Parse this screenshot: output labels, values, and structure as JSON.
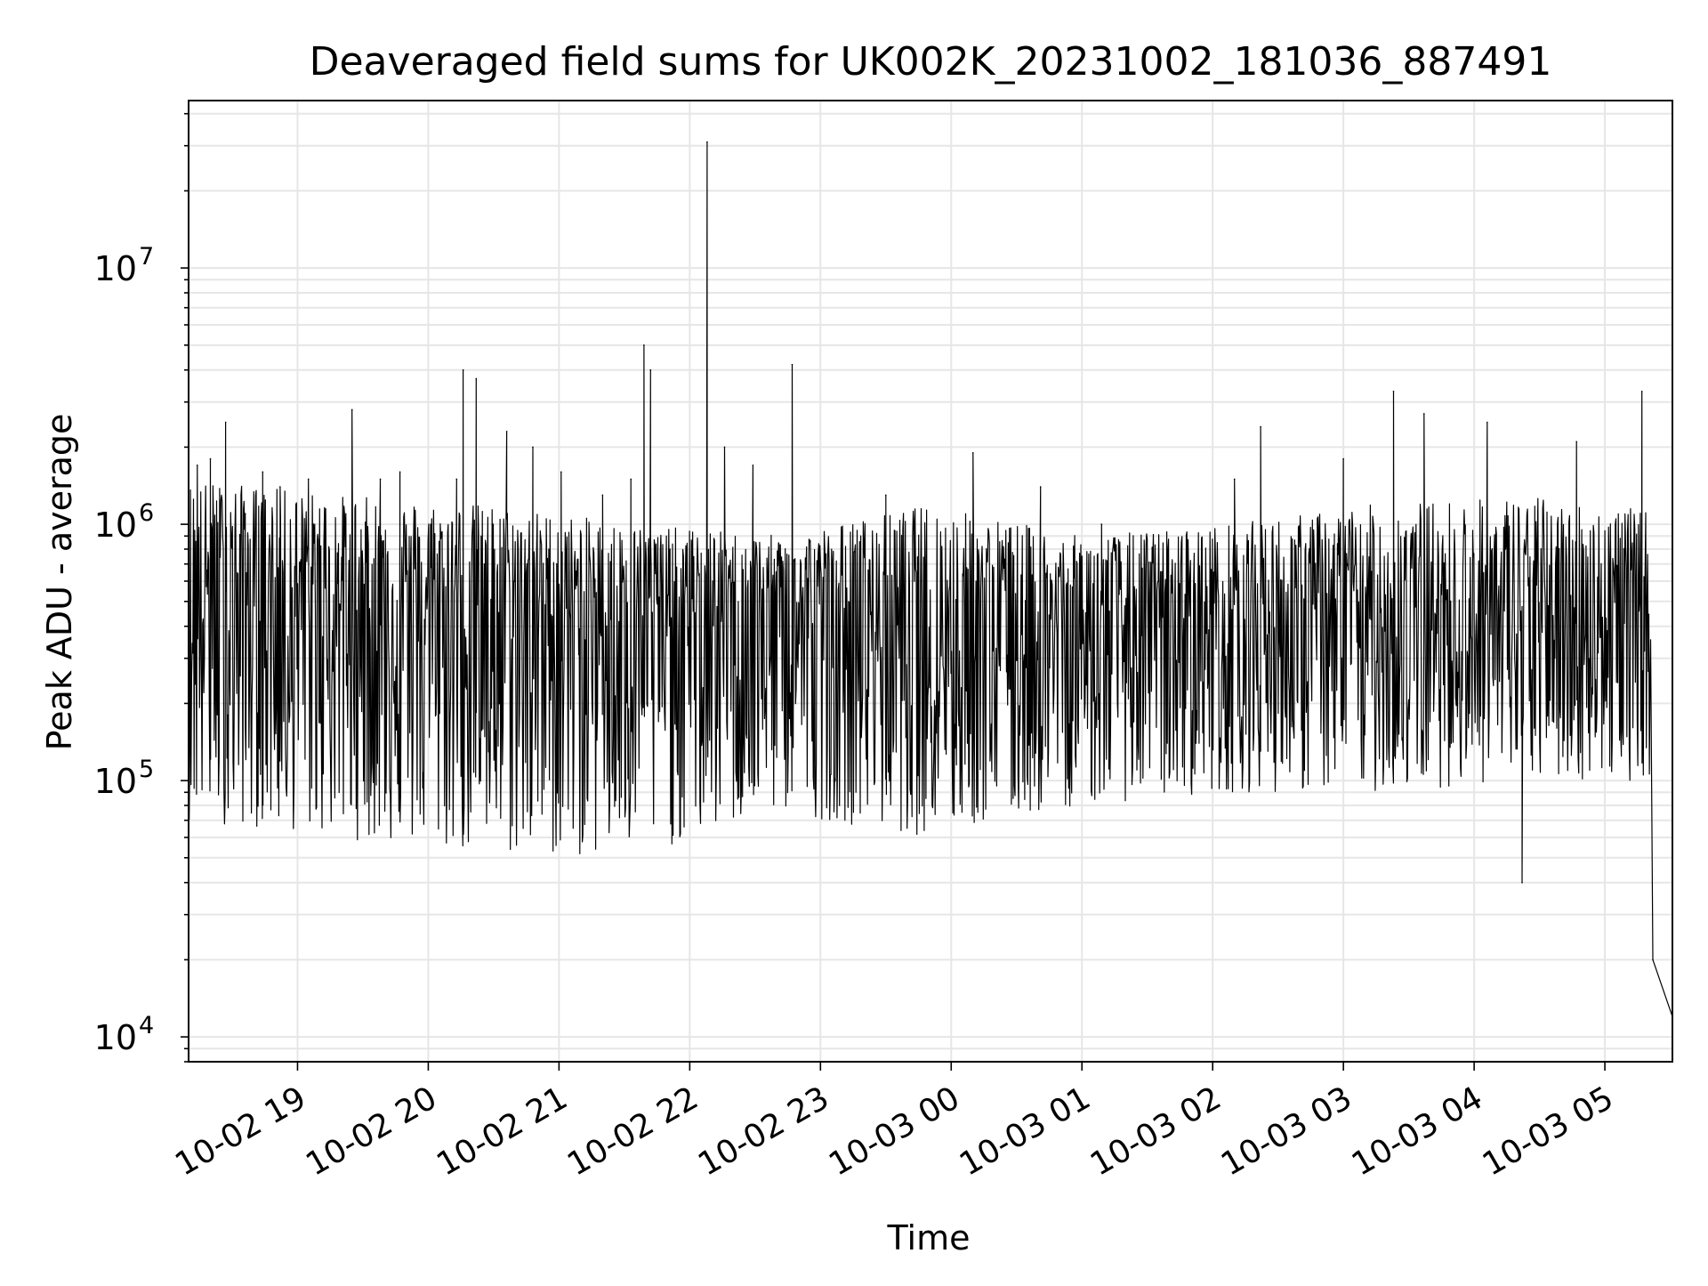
{
  "chart_data": {
    "type": "line",
    "title": "Deaveraged field sums for UK002K_20231002_181036_887491",
    "xlabel": "Time",
    "ylabel": "Peak ADU - average",
    "yscale": "log",
    "ylim": [
      8000,
      45000000
    ],
    "xlim": [
      "2023-10-02 18:10",
      "2023-10-03 05:31"
    ],
    "grid": true,
    "line_color": "#000000",
    "grid_color": "#e6e6e6",
    "x_tick_labels": [
      "10-02 19",
      "10-02 20",
      "10-02 21",
      "10-02 22",
      "10-02 23",
      "10-03 00",
      "10-03 01",
      "10-03 02",
      "10-03 03",
      "10-03 04",
      "10-03 05"
    ],
    "x_ticks": [
      "2023-10-02 19:00",
      "2023-10-02 20:00",
      "2023-10-02 21:00",
      "2023-10-02 22:00",
      "2023-10-02 23:00",
      "2023-10-03 00:00",
      "2023-10-03 01:00",
      "2023-10-03 02:00",
      "2023-10-03 03:00",
      "2023-10-03 04:00",
      "2023-10-03 05:00"
    ],
    "y_tick_values": [
      10000,
      100000,
      1000000,
      10000000
    ],
    "y_tick_labels": [
      {
        "base": "10",
        "exp": "4"
      },
      {
        "base": "10",
        "exp": "5"
      },
      {
        "base": "10",
        "exp": "6"
      },
      {
        "base": "10",
        "exp": "7"
      }
    ],
    "series": [
      {
        "values_note_free": true,
        "x": [
          "2023-10-02 18:10",
          "2023-10-02 18:14",
          "2023-10-02 18:20",
          "2023-10-02 18:27",
          "2023-10-02 18:36",
          "2023-10-02 18:44",
          "2023-10-02 18:52",
          "2023-10-02 19:05",
          "2023-10-02 19:25",
          "2023-10-02 19:38",
          "2023-10-02 19:47",
          "2023-10-02 20:13",
          "2023-10-02 20:16",
          "2023-10-02 20:22",
          "2023-10-02 20:36",
          "2023-10-02 20:48",
          "2023-10-02 21:01",
          "2023-10-02 21:20",
          "2023-10-02 21:33",
          "2023-10-02 21:39",
          "2023-10-02 21:42",
          "2023-10-02 22:08",
          "2023-10-02 22:16",
          "2023-10-02 22:29",
          "2023-10-02 22:47",
          "2023-10-02 23:30",
          "2023-10-03 00:10",
          "2023-10-03 00:41",
          "2023-10-03 01:09",
          "2023-10-03 02:10",
          "2023-10-03 02:22",
          "2023-10-03 03:00",
          "2023-10-03 03:23",
          "2023-10-03 03:37",
          "2023-10-03 04:06",
          "2023-10-03 04:22",
          "2023-10-03 04:47",
          "2023-10-03 05:17",
          "2023-10-03 05:22",
          "2023-10-03 05:31"
        ],
        "values": [
          2000000,
          1700000,
          1800000,
          2500000,
          1100000,
          1600000,
          1400000,
          1500000,
          2800000,
          1500000,
          1600000,
          1500000,
          4000000,
          3700000,
          2300000,
          2000000,
          1600000,
          1300000,
          1500000,
          5000000,
          4000000,
          31000000,
          2000000,
          1700000,
          4200000,
          1300000,
          1900000,
          1400000,
          1000000,
          1500000,
          2400000,
          1800000,
          3300000,
          2700000,
          2500000,
          40000,
          2100000,
          3300000,
          20000,
          12000
        ],
        "dense_band": {
          "upper": [
            1500000,
            1300000,
            1200000,
            1000000,
            900000,
            1200000,
            900000,
            1000000,
            1200000,
            1300000,
            1100000
          ],
          "median": [
            550000,
            500000,
            450000,
            450000,
            450000,
            400000,
            380000,
            420000,
            420000,
            400000,
            450000
          ],
          "lower": [
            70000,
            60000,
            50000,
            50000,
            75000,
            60000,
            80000,
            90000,
            90000,
            100000,
            100000
          ]
        }
      }
    ]
  }
}
